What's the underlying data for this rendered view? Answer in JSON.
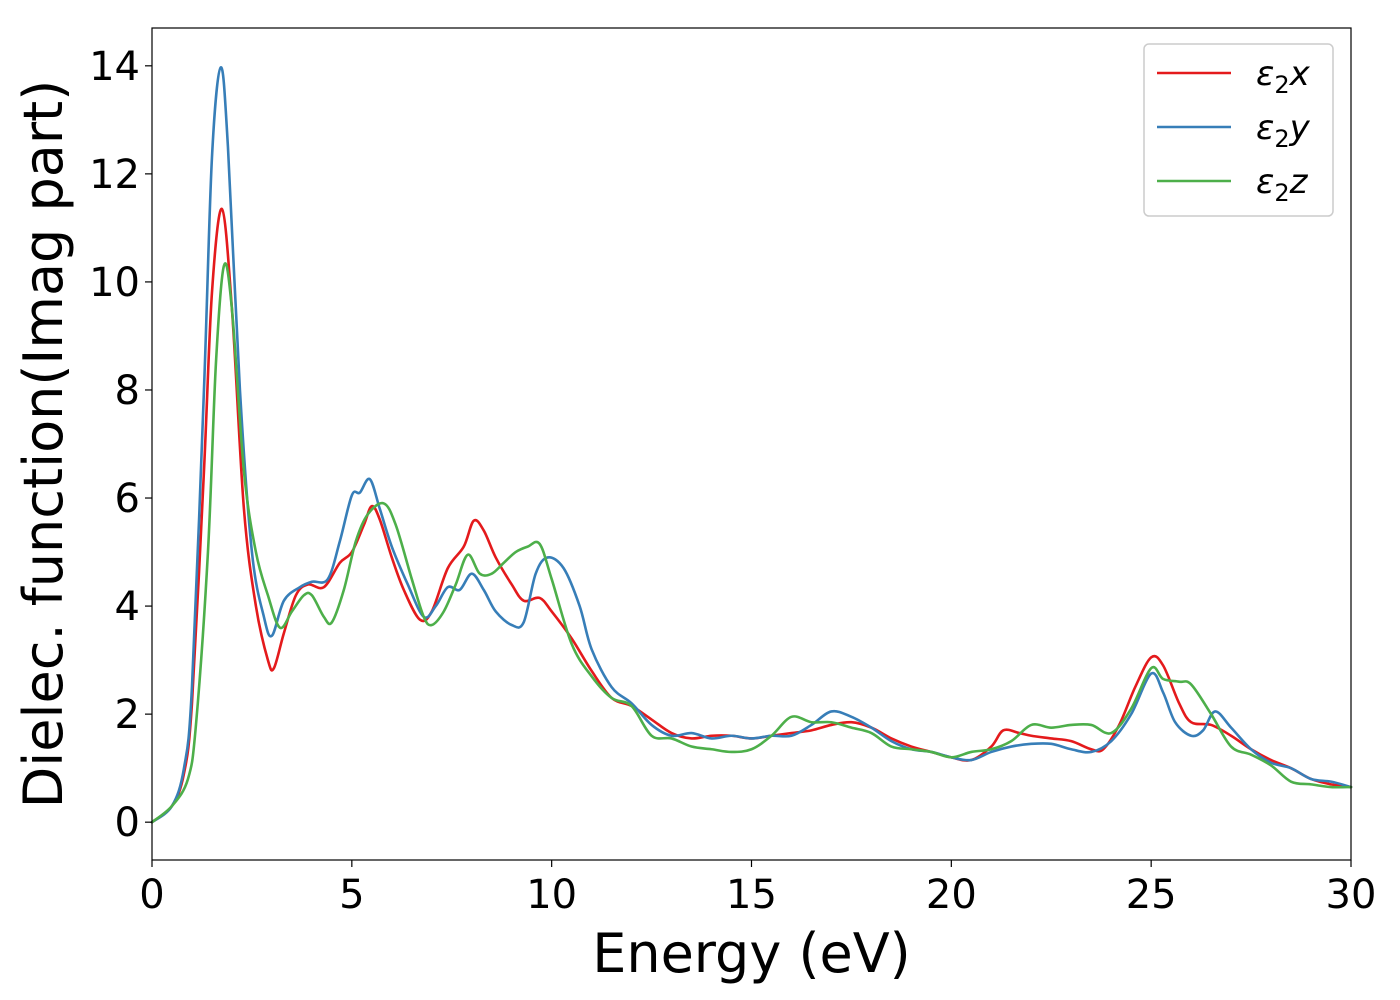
{
  "chart_data": {
    "type": "line",
    "xlabel": "Energy (eV)",
    "ylabel": "Dielec. function(Imag part)",
    "xlim": [
      0,
      30
    ],
    "ylim": [
      -0.7,
      14.7
    ],
    "xticks": [
      0,
      5,
      10,
      15,
      20,
      25,
      30
    ],
    "yticks": [
      0,
      2,
      4,
      6,
      8,
      10,
      12,
      14
    ],
    "grid": false,
    "legend_position": "top-right",
    "series": [
      {
        "name": "ε₂x",
        "legend": {
          "base": "ε",
          "sub": "2",
          "var": "x"
        },
        "color": "#e41a1c",
        "x": [
          0,
          0.5,
          0.8,
          1.0,
          1.3,
          1.5,
          1.75,
          2.0,
          2.3,
          2.6,
          2.9,
          3.05,
          3.3,
          3.6,
          3.9,
          4.3,
          4.7,
          5.0,
          5.3,
          5.5,
          5.7,
          6.0,
          6.3,
          6.7,
          7.0,
          7.4,
          7.8,
          8.05,
          8.3,
          8.6,
          9.0,
          9.3,
          9.7,
          10.0,
          10.5,
          11.0,
          11.5,
          12.0,
          12.5,
          13.0,
          13.5,
          14.0,
          14.5,
          15.0,
          15.5,
          16.0,
          16.5,
          17.0,
          17.5,
          18.0,
          18.5,
          19.0,
          19.5,
          20.0,
          20.5,
          21.0,
          21.3,
          21.7,
          22.0,
          22.5,
          23.0,
          23.5,
          23.8,
          24.2,
          24.6,
          25.0,
          25.3,
          25.7,
          26.0,
          26.5,
          27.0,
          27.5,
          28.0,
          28.5,
          29.0,
          29.5,
          30.0
        ],
        "y": [
          0,
          0.3,
          0.9,
          2.2,
          6.5,
          9.8,
          11.35,
          9.5,
          5.8,
          4.0,
          3.0,
          2.85,
          3.5,
          4.2,
          4.4,
          4.35,
          4.8,
          5.0,
          5.5,
          5.85,
          5.6,
          4.9,
          4.3,
          3.75,
          3.9,
          4.7,
          5.1,
          5.58,
          5.4,
          4.9,
          4.4,
          4.1,
          4.15,
          3.9,
          3.4,
          2.8,
          2.3,
          2.15,
          1.9,
          1.65,
          1.55,
          1.6,
          1.6,
          1.55,
          1.6,
          1.65,
          1.7,
          1.8,
          1.85,
          1.75,
          1.55,
          1.4,
          1.3,
          1.2,
          1.15,
          1.4,
          1.7,
          1.65,
          1.6,
          1.55,
          1.5,
          1.35,
          1.35,
          1.8,
          2.5,
          3.05,
          2.9,
          2.2,
          1.85,
          1.8,
          1.6,
          1.35,
          1.15,
          1.0,
          0.8,
          0.7,
          0.65
        ]
      },
      {
        "name": "ε₂y",
        "legend": {
          "base": "ε",
          "sub": "2",
          "var": "y"
        },
        "color": "#377eb8",
        "x": [
          0,
          0.5,
          0.8,
          1.0,
          1.3,
          1.5,
          1.72,
          1.9,
          2.2,
          2.5,
          2.8,
          3.0,
          3.3,
          3.7,
          4.0,
          4.4,
          4.7,
          5.0,
          5.2,
          5.45,
          5.7,
          6.0,
          6.4,
          6.8,
          7.1,
          7.4,
          7.7,
          8.0,
          8.3,
          8.6,
          9.0,
          9.3,
          9.6,
          9.9,
          10.3,
          10.7,
          11.0,
          11.5,
          12.0,
          12.5,
          13.0,
          13.5,
          14.0,
          14.5,
          15.0,
          15.5,
          16.0,
          16.5,
          17.0,
          17.5,
          18.0,
          18.5,
          19.0,
          19.5,
          20.0,
          20.5,
          21.0,
          21.5,
          22.0,
          22.5,
          23.0,
          23.5,
          24.0,
          24.5,
          25.0,
          25.3,
          25.6,
          26.0,
          26.3,
          26.6,
          27.0,
          27.5,
          28.0,
          28.5,
          29.0,
          29.5,
          30.0
        ],
        "y": [
          0,
          0.3,
          1.0,
          2.5,
          8.0,
          12.3,
          13.97,
          12.5,
          8.0,
          5.0,
          3.8,
          3.45,
          4.1,
          4.35,
          4.45,
          4.5,
          5.2,
          6.05,
          6.1,
          6.35,
          5.8,
          5.1,
          4.4,
          3.8,
          4.0,
          4.35,
          4.3,
          4.6,
          4.3,
          3.9,
          3.65,
          3.7,
          4.6,
          4.9,
          4.7,
          4.0,
          3.2,
          2.5,
          2.2,
          1.8,
          1.6,
          1.65,
          1.55,
          1.6,
          1.55,
          1.6,
          1.6,
          1.8,
          2.05,
          1.95,
          1.75,
          1.5,
          1.35,
          1.3,
          1.2,
          1.15,
          1.3,
          1.4,
          1.45,
          1.45,
          1.35,
          1.3,
          1.5,
          2.0,
          2.75,
          2.4,
          1.85,
          1.6,
          1.7,
          2.05,
          1.75,
          1.35,
          1.1,
          1.0,
          0.8,
          0.75,
          0.65
        ]
      },
      {
        "name": "ε₂z",
        "legend": {
          "base": "ε",
          "sub": "2",
          "var": "z"
        },
        "color": "#4daf4a",
        "x": [
          0,
          0.5,
          0.9,
          1.1,
          1.4,
          1.6,
          1.8,
          2.0,
          2.3,
          2.6,
          2.9,
          3.2,
          3.5,
          3.8,
          4.0,
          4.3,
          4.5,
          4.8,
          5.1,
          5.4,
          5.8,
          6.1,
          6.5,
          6.8,
          7.0,
          7.3,
          7.6,
          7.9,
          8.2,
          8.5,
          8.8,
          9.1,
          9.4,
          9.7,
          10.0,
          10.5,
          11.0,
          11.5,
          12.0,
          12.5,
          13.0,
          13.5,
          14.0,
          14.5,
          15.0,
          15.5,
          16.0,
          16.5,
          17.0,
          17.5,
          18.0,
          18.5,
          19.0,
          19.5,
          20.0,
          20.5,
          21.0,
          21.5,
          22.0,
          22.5,
          23.0,
          23.5,
          24.0,
          24.5,
          25.0,
          25.3,
          25.7,
          26.0,
          26.5,
          27.0,
          27.5,
          28.0,
          28.5,
          29.0,
          29.5,
          30.0
        ],
        "y": [
          0,
          0.3,
          0.8,
          1.8,
          5.0,
          8.5,
          10.3,
          9.5,
          6.5,
          5.0,
          4.2,
          3.6,
          3.9,
          4.2,
          4.2,
          3.8,
          3.7,
          4.3,
          5.2,
          5.7,
          5.9,
          5.5,
          4.5,
          3.8,
          3.65,
          3.9,
          4.4,
          4.95,
          4.6,
          4.6,
          4.8,
          5.0,
          5.1,
          5.15,
          4.5,
          3.3,
          2.7,
          2.3,
          2.15,
          1.6,
          1.55,
          1.4,
          1.35,
          1.3,
          1.35,
          1.6,
          1.95,
          1.85,
          1.85,
          1.75,
          1.65,
          1.4,
          1.35,
          1.3,
          1.2,
          1.3,
          1.35,
          1.5,
          1.8,
          1.75,
          1.8,
          1.8,
          1.65,
          2.1,
          2.85,
          2.65,
          2.6,
          2.55,
          2.0,
          1.4,
          1.25,
          1.05,
          0.75,
          0.7,
          0.65,
          0.65
        ]
      }
    ]
  }
}
